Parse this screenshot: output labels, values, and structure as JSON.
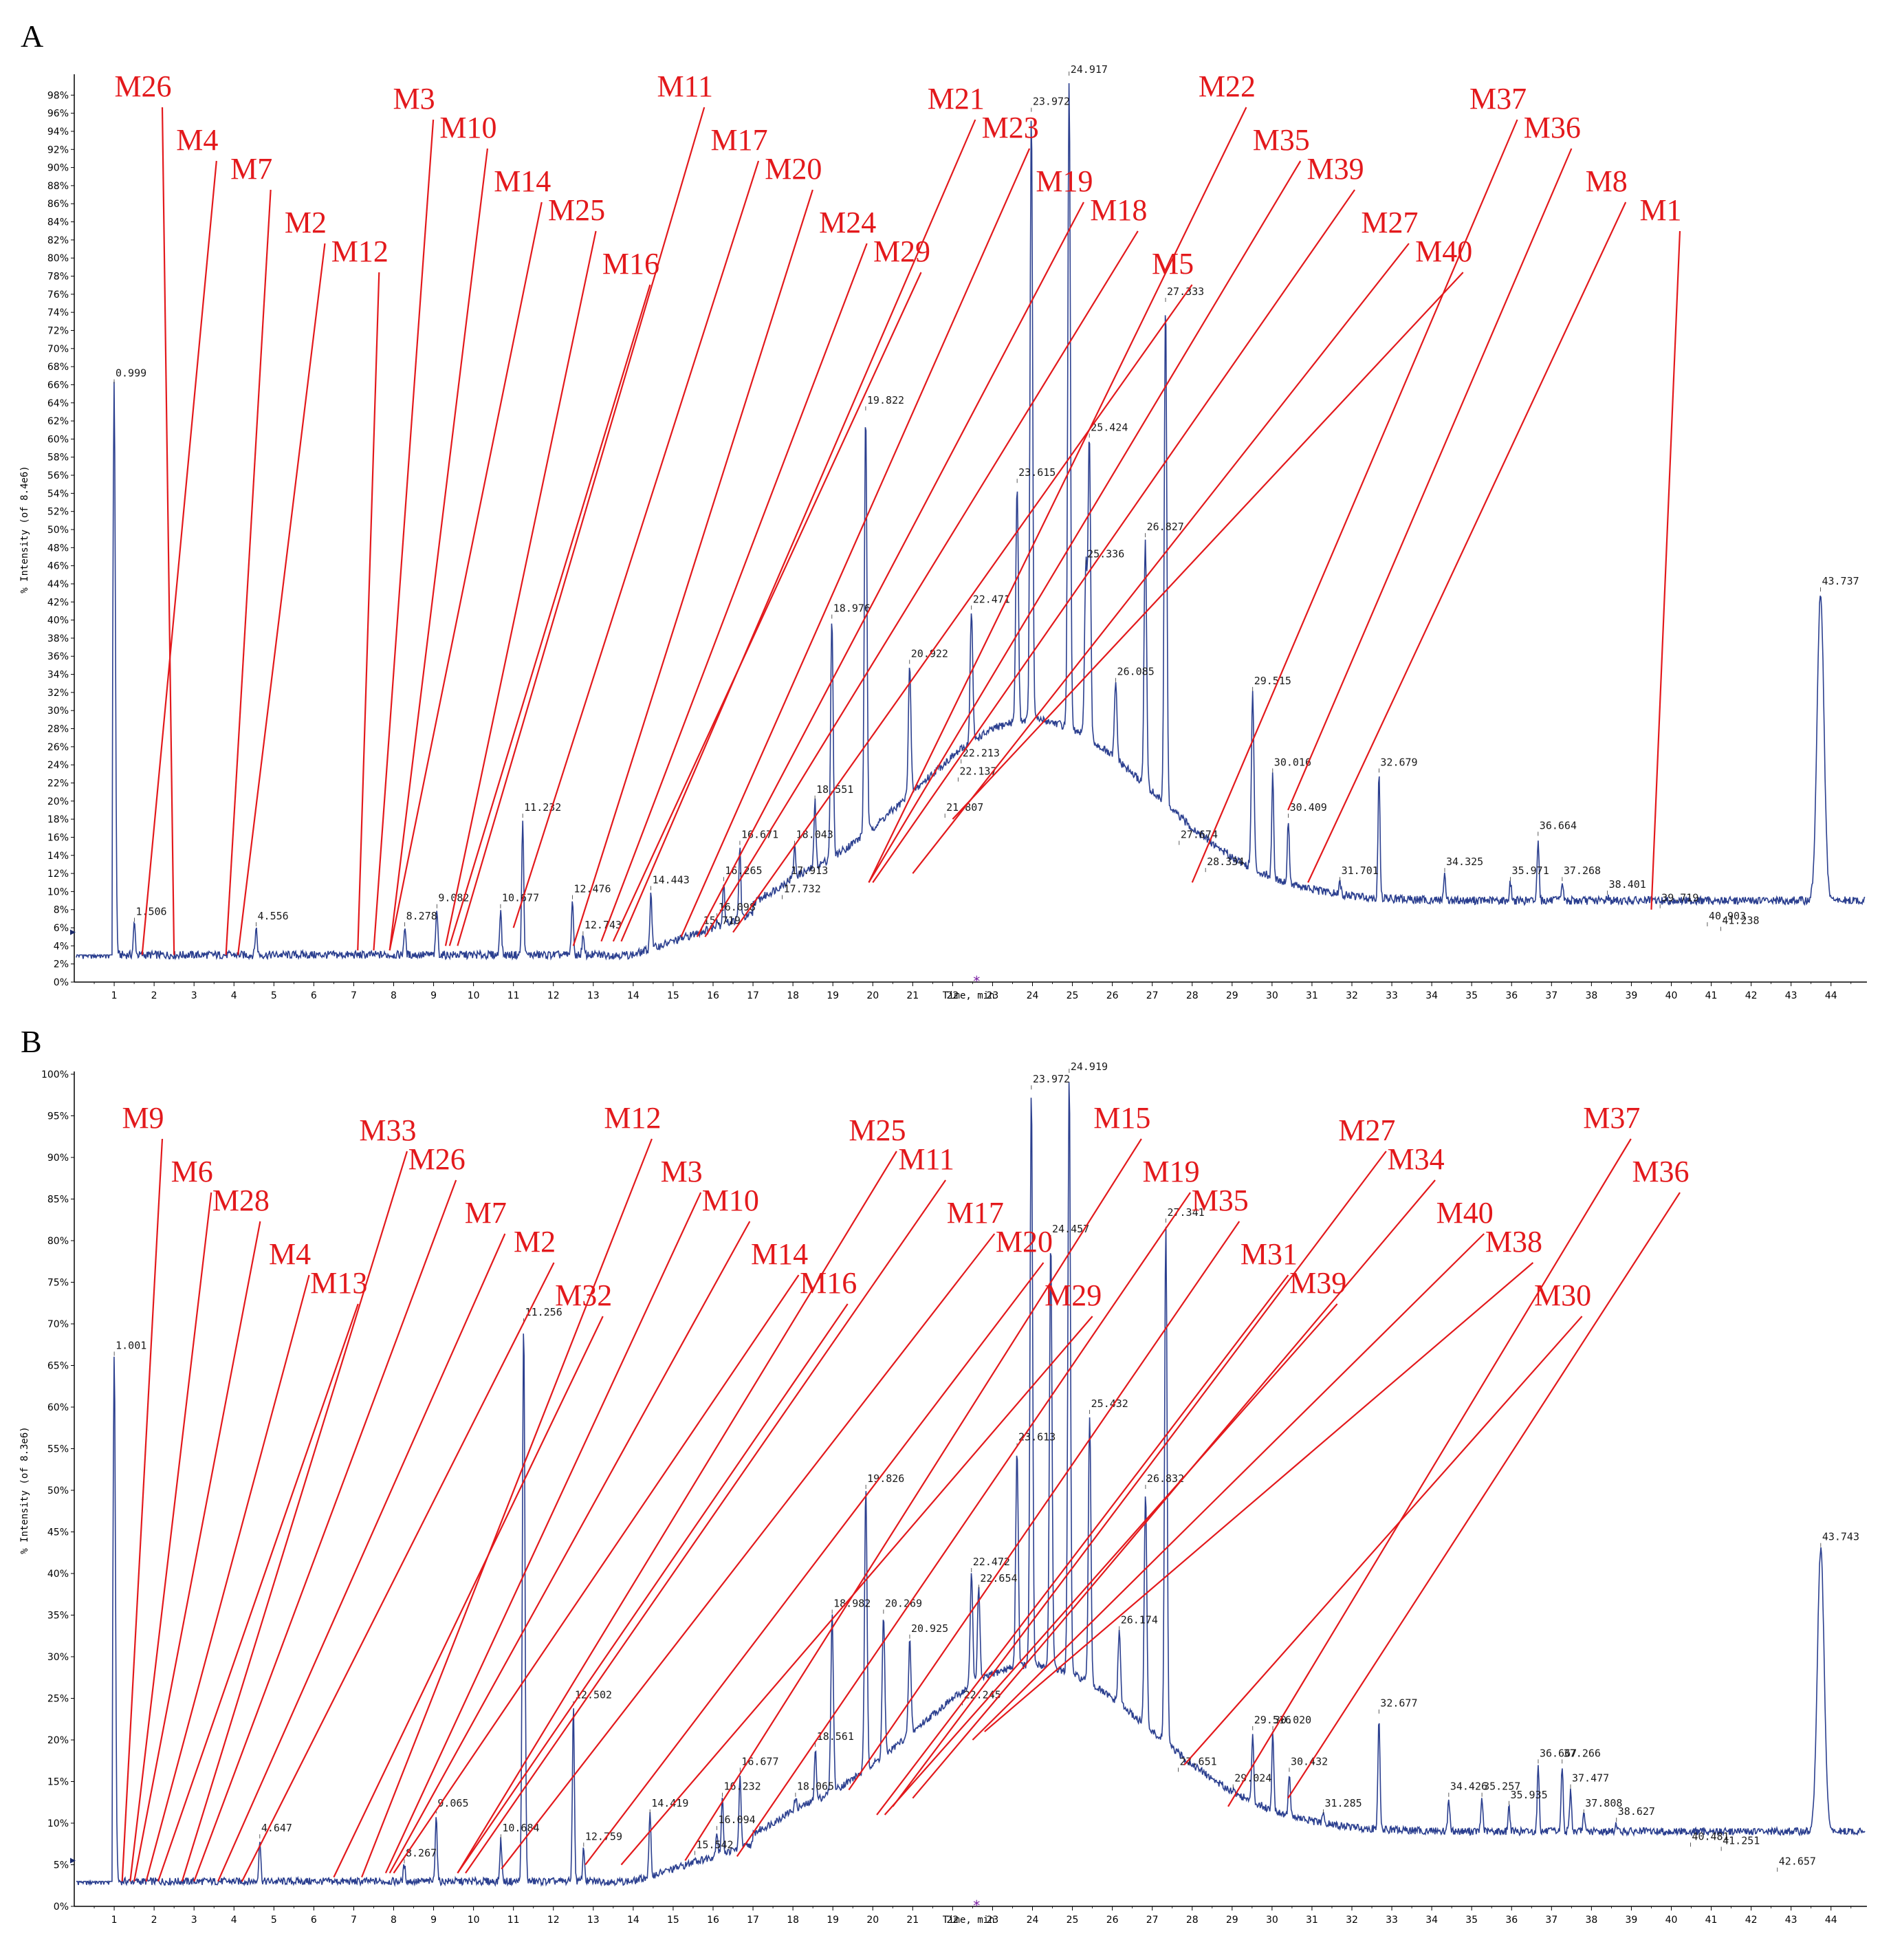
{
  "colors": {
    "trace": "#2b3f8f",
    "annotation": "#e3191c",
    "axis": "#000000",
    "marker": "#7a1fa2"
  },
  "chart_data": [
    {
      "panel": "A",
      "type": "line",
      "xlabel": "Time, min",
      "ylabel": "% Intensity (of 8.4e6)",
      "xlim": [
        0,
        44.9
      ],
      "ylim": [
        0,
        100
      ],
      "x_ticks": [
        1,
        2,
        3,
        4,
        5,
        6,
        7,
        8,
        9,
        10,
        11,
        12,
        13,
        14,
        15,
        16,
        17,
        18,
        19,
        20,
        21,
        22,
        23,
        24,
        25,
        26,
        27,
        28,
        29,
        30,
        31,
        32,
        33,
        34,
        35,
        36,
        37,
        38,
        39,
        40,
        41,
        42,
        43,
        44
      ],
      "y_tick_labels": [
        "0%",
        "2%",
        "4%",
        "6%",
        "8%",
        "10%",
        "12%",
        "14%",
        "16%",
        "18%",
        "20%",
        "22%",
        "24%",
        "26%",
        "28%",
        "30%",
        "32%",
        "34%",
        "36%",
        "38%",
        "40%",
        "42%",
        "44%",
        "46%",
        "48%",
        "50%",
        "52%",
        "54%",
        "56%",
        "58%",
        "60%",
        "62%",
        "64%",
        "66%",
        "68%",
        "70%",
        "72%",
        "74%",
        "76%",
        "78%",
        "80%",
        "82%",
        "84%",
        "86%",
        "88%",
        "90%",
        "92%",
        "94%",
        "96%",
        "98%"
      ],
      "peaks": [
        {
          "rt": 0.999,
          "label": "0.999",
          "value": 66
        },
        {
          "rt": 1.506,
          "label": "1.506",
          "value": 6.5
        },
        {
          "rt": 4.556,
          "label": "4.556",
          "value": 6
        },
        {
          "rt": 8.278,
          "label": "8.278",
          "value": 6
        },
        {
          "rt": 9.082,
          "label": "9.082",
          "value": 8
        },
        {
          "rt": 10.677,
          "label": "10.677",
          "value": 8
        },
        {
          "rt": 11.232,
          "label": "11.232",
          "value": 18
        },
        {
          "rt": 12.476,
          "label": "12.476",
          "value": 9
        },
        {
          "rt": 12.743,
          "label": "12.743",
          "value": 5
        },
        {
          "rt": 14.443,
          "label": "14.443",
          "value": 10
        },
        {
          "rt": 15.719,
          "label": "15.719",
          "value": 5.5
        },
        {
          "rt": 16.098,
          "label": "16.098",
          "value": 7
        },
        {
          "rt": 16.265,
          "label": "16.265",
          "value": 11
        },
        {
          "rt": 16.671,
          "label": "16.671",
          "value": 15
        },
        {
          "rt": 17.732,
          "label": "17.732",
          "value": 9
        },
        {
          "rt": 17.913,
          "label": "17.913",
          "value": 11
        },
        {
          "rt": 18.043,
          "label": "18.043",
          "value": 15
        },
        {
          "rt": 18.551,
          "label": "18.551",
          "value": 20
        },
        {
          "rt": 18.976,
          "label": "18.976",
          "value": 40
        },
        {
          "rt": 19.822,
          "label": "19.822",
          "value": 63
        },
        {
          "rt": 20.922,
          "label": "20.922",
          "value": 35
        },
        {
          "rt": 21.807,
          "label": "21.807",
          "value": 18
        },
        {
          "rt": 22.137,
          "label": "22.137",
          "value": 22
        },
        {
          "rt": 22.213,
          "label": "22.213",
          "value": 24
        },
        {
          "rt": 22.471,
          "label": "22.471",
          "value": 41
        },
        {
          "rt": 23.615,
          "label": "23.615",
          "value": 55
        },
        {
          "rt": 23.972,
          "label": "23.972",
          "value": 96
        },
        {
          "rt": 24.917,
          "label": "24.917",
          "value": 100
        },
        {
          "rt": 25.336,
          "label": "25.336",
          "value": 46
        },
        {
          "rt": 25.424,
          "label": "25.424",
          "value": 60
        },
        {
          "rt": 26.085,
          "label": "26.085",
          "value": 33
        },
        {
          "rt": 26.827,
          "label": "26.827",
          "value": 49
        },
        {
          "rt": 27.333,
          "label": "27.333",
          "value": 75
        },
        {
          "rt": 27.674,
          "label": "27.674",
          "value": 15
        },
        {
          "rt": 28.334,
          "label": "28.334",
          "value": 12
        },
        {
          "rt": 29.515,
          "label": "29.515",
          "value": 32
        },
        {
          "rt": 30.016,
          "label": "30.016",
          "value": 23
        },
        {
          "rt": 30.409,
          "label": "30.409",
          "value": 18
        },
        {
          "rt": 31.701,
          "label": "31.701",
          "value": 11
        },
        {
          "rt": 32.679,
          "label": "32.679",
          "value": 23
        },
        {
          "rt": 34.325,
          "label": "34.325",
          "value": 12
        },
        {
          "rt": 35.971,
          "label": "35.971",
          "value": 11
        },
        {
          "rt": 36.664,
          "label": "36.664",
          "value": 16
        },
        {
          "rt": 37.268,
          "label": "37.268",
          "value": 11
        },
        {
          "rt": 38.401,
          "label": "38.401",
          "value": 9.5
        },
        {
          "rt": 39.719,
          "label": "39.719",
          "value": 8
        },
        {
          "rt": 40.903,
          "label": "40.903",
          "value": 6
        },
        {
          "rt": 41.238,
          "label": "41.238",
          "value": 5.5
        },
        {
          "rt": 43.737,
          "label": "43.737",
          "value": 43
        }
      ],
      "annotations": [
        {
          "label": "M26",
          "rt": 2.5,
          "value": 3
        },
        {
          "label": "M4",
          "rt": 1.7,
          "value": 3
        },
        {
          "label": "M7",
          "rt": 3.8,
          "value": 3
        },
        {
          "label": "M2",
          "rt": 4.1,
          "value": 3
        },
        {
          "label": "M12",
          "rt": 7.1,
          "value": 3.5
        },
        {
          "label": "M3",
          "rt": 7.5,
          "value": 3.5
        },
        {
          "label": "M10",
          "rt": 7.9,
          "value": 3.5
        },
        {
          "label": "M14",
          "rt": 7.9,
          "value": 3.5
        },
        {
          "label": "M25",
          "rt": 9.3,
          "value": 4
        },
        {
          "label": "M16",
          "rt": 9.4,
          "value": 4
        },
        {
          "label": "M11",
          "rt": 9.6,
          "value": 4
        },
        {
          "label": "M17",
          "rt": 11.0,
          "value": 6
        },
        {
          "label": "M20",
          "rt": 12.5,
          "value": 4
        },
        {
          "label": "M24",
          "rt": 13.2,
          "value": 4.5
        },
        {
          "label": "M29",
          "rt": 13.5,
          "value": 4.5
        },
        {
          "label": "M21",
          "rt": 13.7,
          "value": 4.5
        },
        {
          "label": "M23",
          "rt": 15.2,
          "value": 5
        },
        {
          "label": "M19",
          "rt": 15.6,
          "value": 5
        },
        {
          "label": "M18",
          "rt": 15.8,
          "value": 5
        },
        {
          "label": "M5",
          "rt": 16.5,
          "value": 5.5
        },
        {
          "label": "M22",
          "rt": 19.9,
          "value": 11
        },
        {
          "label": "M35",
          "rt": 19.9,
          "value": 11
        },
        {
          "label": "M39",
          "rt": 20.0,
          "value": 11
        },
        {
          "label": "M27",
          "rt": 21.0,
          "value": 12
        },
        {
          "label": "M40",
          "rt": 22.0,
          "value": 18
        },
        {
          "label": "M37",
          "rt": 28.0,
          "value": 11
        },
        {
          "label": "M36",
          "rt": 30.4,
          "value": 19
        },
        {
          "label": "M8",
          "rt": 30.9,
          "value": 11
        },
        {
          "label": "M1",
          "rt": 39.5,
          "value": 8
        }
      ]
    },
    {
      "panel": "B",
      "type": "line",
      "xlabel": "Time, min",
      "ylabel": "% Intensity (of 8.3e6)",
      "xlim": [
        0,
        44.9
      ],
      "ylim": [
        0,
        100
      ],
      "x_ticks": [
        1,
        2,
        3,
        4,
        5,
        6,
        7,
        8,
        9,
        10,
        11,
        12,
        13,
        14,
        15,
        16,
        17,
        18,
        19,
        20,
        21,
        22,
        23,
        24,
        25,
        26,
        27,
        28,
        29,
        30,
        31,
        32,
        33,
        34,
        35,
        36,
        37,
        38,
        39,
        40,
        41,
        42,
        43,
        44
      ],
      "y_tick_labels": [
        "0%",
        "5%",
        "10%",
        "15%",
        "20%",
        "25%",
        "30%",
        "35%",
        "40%",
        "45%",
        "50%",
        "55%",
        "60%",
        "65%",
        "70%",
        "75%",
        "80%",
        "85%",
        "90%",
        "95%",
        "100%"
      ],
      "peaks": [
        {
          "rt": 1.001,
          "label": "1.001",
          "value": 66
        },
        {
          "rt": 4.647,
          "label": "4.647",
          "value": 8
        },
        {
          "rt": 8.267,
          "label": "8.267",
          "value": 5
        },
        {
          "rt": 9.065,
          "label": "9.065",
          "value": 11
        },
        {
          "rt": 10.684,
          "label": "10.684",
          "value": 8
        },
        {
          "rt": 11.256,
          "label": "11.256",
          "value": 70
        },
        {
          "rt": 12.502,
          "label": "12.502",
          "value": 24
        },
        {
          "rt": 12.759,
          "label": "12.759",
          "value": 7
        },
        {
          "rt": 14.419,
          "label": "14.419",
          "value": 11
        },
        {
          "rt": 15.542,
          "label": "15.542",
          "value": 6
        },
        {
          "rt": 16.094,
          "label": "16.094",
          "value": 9
        },
        {
          "rt": 16.232,
          "label": "16.232",
          "value": 13
        },
        {
          "rt": 16.677,
          "label": "16.677",
          "value": 16
        },
        {
          "rt": 18.065,
          "label": "18.065",
          "value": 13
        },
        {
          "rt": 18.561,
          "label": "18.561",
          "value": 19
        },
        {
          "rt": 18.982,
          "label": "18.982",
          "value": 35
        },
        {
          "rt": 19.826,
          "label": "19.826",
          "value": 50
        },
        {
          "rt": 20.269,
          "label": "20.269",
          "value": 35
        },
        {
          "rt": 20.925,
          "label": "20.925",
          "value": 32
        },
        {
          "rt": 22.245,
          "label": "22.245",
          "value": 24
        },
        {
          "rt": 22.472,
          "label": "22.472",
          "value": 40
        },
        {
          "rt": 22.654,
          "label": "22.654",
          "value": 38
        },
        {
          "rt": 23.613,
          "label": "23.613",
          "value": 55
        },
        {
          "rt": 23.972,
          "label": "23.972",
          "value": 98
        },
        {
          "rt": 24.457,
          "label": "24.457",
          "value": 80
        },
        {
          "rt": 24.919,
          "label": "24.919",
          "value": 100
        },
        {
          "rt": 25.432,
          "label": "25.432",
          "value": 59
        },
        {
          "rt": 26.174,
          "label": "26.174",
          "value": 33
        },
        {
          "rt": 26.832,
          "label": "26.832",
          "value": 50
        },
        {
          "rt": 27.341,
          "label": "27.341",
          "value": 82
        },
        {
          "rt": 27.651,
          "label": "27.651",
          "value": 16
        },
        {
          "rt": 29.024,
          "label": "29.024",
          "value": 14
        },
        {
          "rt": 29.516,
          "label": "29.516",
          "value": 21
        },
        {
          "rt": 30.02,
          "label": "30.020",
          "value": 21
        },
        {
          "rt": 30.432,
          "label": "30.432",
          "value": 16
        },
        {
          "rt": 31.285,
          "label": "31.285",
          "value": 11
        },
        {
          "rt": 32.677,
          "label": "32.677",
          "value": 23
        },
        {
          "rt": 34.426,
          "label": "34.426",
          "value": 13
        },
        {
          "rt": 35.257,
          "label": "35.257",
          "value": 13
        },
        {
          "rt": 35.935,
          "label": "35.935",
          "value": 12
        },
        {
          "rt": 36.667,
          "label": "36.667",
          "value": 17
        },
        {
          "rt": 37.266,
          "label": "37.266",
          "value": 17
        },
        {
          "rt": 37.477,
          "label": "37.477",
          "value": 14
        },
        {
          "rt": 37.808,
          "label": "37.808",
          "value": 11
        },
        {
          "rt": 38.627,
          "label": "38.627",
          "value": 10
        },
        {
          "rt": 40.481,
          "label": "40.481",
          "value": 7
        },
        {
          "rt": 41.251,
          "label": "41.251",
          "value": 6.5
        },
        {
          "rt": 42.657,
          "label": "42.657",
          "value": 4
        },
        {
          "rt": 43.743,
          "label": "43.743",
          "value": 43
        }
      ],
      "annotations": [
        {
          "label": "M9",
          "rt": 1.2,
          "value": 3
        },
        {
          "label": "M6",
          "rt": 1.4,
          "value": 3
        },
        {
          "label": "M28",
          "rt": 1.5,
          "value": 3
        },
        {
          "label": "M4",
          "rt": 1.8,
          "value": 3
        },
        {
          "label": "M13",
          "rt": 2.1,
          "value": 3
        },
        {
          "label": "M33",
          "rt": 2.7,
          "value": 3
        },
        {
          "label": "M26",
          "rt": 3.0,
          "value": 3
        },
        {
          "label": "M7",
          "rt": 3.6,
          "value": 3
        },
        {
          "label": "M2",
          "rt": 4.2,
          "value": 3
        },
        {
          "label": "M32",
          "rt": 6.5,
          "value": 3.5
        },
        {
          "label": "M12",
          "rt": 7.2,
          "value": 3.5
        },
        {
          "label": "M3",
          "rt": 7.8,
          "value": 4
        },
        {
          "label": "M10",
          "rt": 7.9,
          "value": 4
        },
        {
          "label": "M14",
          "rt": 8.0,
          "value": 4
        },
        {
          "label": "M16",
          "rt": 9.6,
          "value": 4
        },
        {
          "label": "M25",
          "rt": 9.6,
          "value": 4
        },
        {
          "label": "M11",
          "rt": 9.8,
          "value": 4
        },
        {
          "label": "M17",
          "rt": 10.7,
          "value": 4.5
        },
        {
          "label": "M20",
          "rt": 12.8,
          "value": 5
        },
        {
          "label": "M29",
          "rt": 13.7,
          "value": 5
        },
        {
          "label": "M15",
          "rt": 15.3,
          "value": 5.5
        },
        {
          "label": "M19",
          "rt": 16.6,
          "value": 6
        },
        {
          "label": "M35",
          "rt": 19.4,
          "value": 14
        },
        {
          "label": "M31",
          "rt": 20.1,
          "value": 11
        },
        {
          "label": "M39",
          "rt": 20.3,
          "value": 11
        },
        {
          "label": "M27",
          "rt": 20.5,
          "value": 12
        },
        {
          "label": "M34",
          "rt": 21.0,
          "value": 13
        },
        {
          "label": "M40",
          "rt": 22.5,
          "value": 20
        },
        {
          "label": "M38",
          "rt": 22.8,
          "value": 21
        },
        {
          "label": "M30",
          "rt": 27.8,
          "value": 17
        },
        {
          "label": "M37",
          "rt": 28.9,
          "value": 12
        },
        {
          "label": "M36",
          "rt": 30.4,
          "value": 13
        }
      ]
    }
  ],
  "panels": [
    {
      "letter": "A"
    },
    {
      "letter": "B"
    }
  ]
}
